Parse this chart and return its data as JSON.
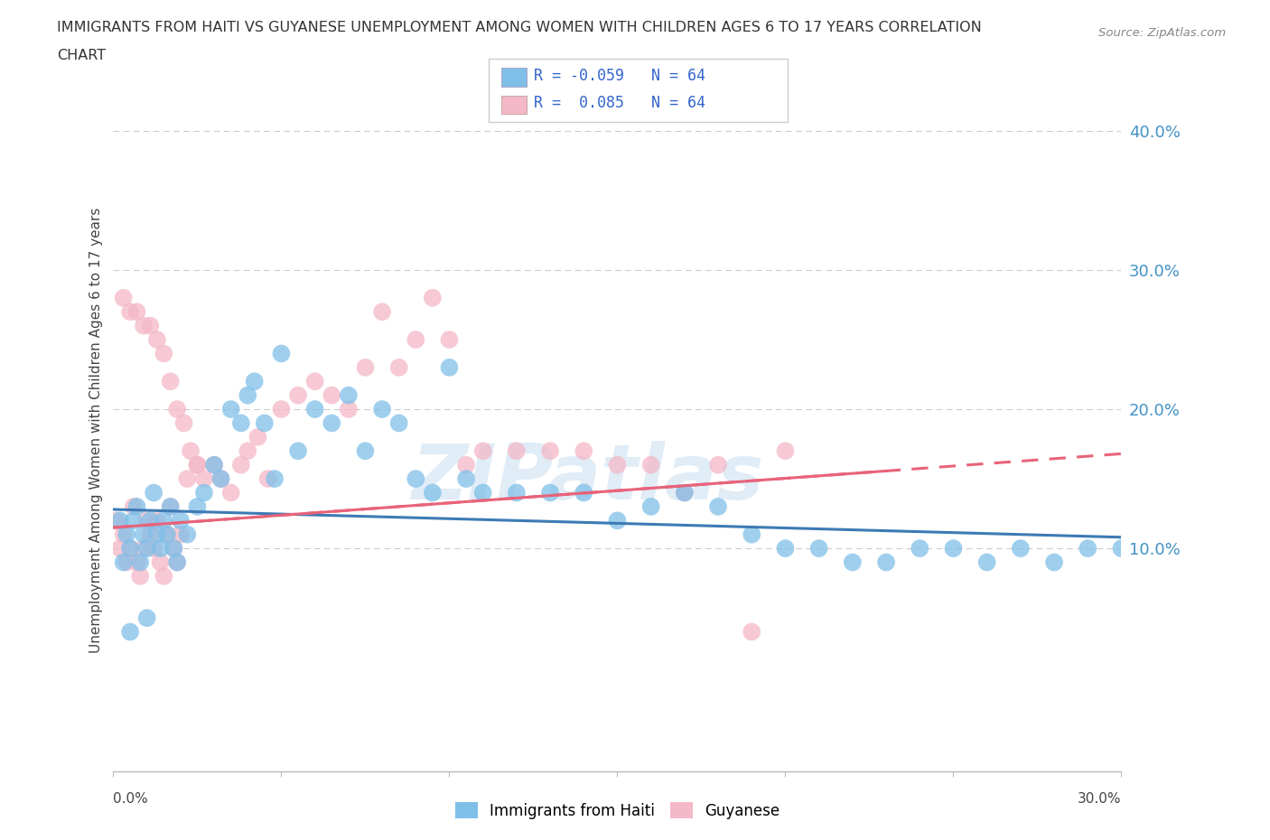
{
  "title_line1": "IMMIGRANTS FROM HAITI VS GUYANESE UNEMPLOYMENT AMONG WOMEN WITH CHILDREN AGES 6 TO 17 YEARS CORRELATION",
  "title_line2": "CHART",
  "source": "Source: ZipAtlas.com",
  "ylabel": "Unemployment Among Women with Children Ages 6 to 17 years",
  "ylabel_right_ticks": [
    "40.0%",
    "30.0%",
    "20.0%",
    "10.0%"
  ],
  "ylabel_right_vals": [
    0.4,
    0.3,
    0.2,
    0.1
  ],
  "xmin": 0.0,
  "xmax": 0.3,
  "ymin": -0.06,
  "ymax": 0.43,
  "haiti_color": "#7fbfe8",
  "guyanese_color": "#f4b8c8",
  "haiti_line_color": "#3d7ab5",
  "guyanese_line_color": "#e8637a",
  "haiti_R": -0.059,
  "haiti_N": 64,
  "guyanese_R": 0.085,
  "guyanese_N": 64,
  "haiti_line_x0": 0.0,
  "haiti_line_y0": 0.128,
  "haiti_line_x1": 0.3,
  "haiti_line_y1": 0.108,
  "guyanese_line_x0": 0.0,
  "guyanese_line_y0": 0.115,
  "guyanese_line_x1": 0.3,
  "guyanese_line_y1": 0.168,
  "grid_color": "#cccccc",
  "background_color": "#ffffff",
  "watermark": "ZIPatlas",
  "haiti_scatter_x": [
    0.002,
    0.003,
    0.004,
    0.005,
    0.006,
    0.007,
    0.008,
    0.009,
    0.01,
    0.011,
    0.012,
    0.013,
    0.014,
    0.015,
    0.016,
    0.017,
    0.018,
    0.019,
    0.02,
    0.022,
    0.025,
    0.027,
    0.03,
    0.032,
    0.035,
    0.038,
    0.04,
    0.042,
    0.045,
    0.048,
    0.05,
    0.055,
    0.06,
    0.065,
    0.07,
    0.075,
    0.08,
    0.085,
    0.09,
    0.095,
    0.1,
    0.105,
    0.11,
    0.12,
    0.13,
    0.14,
    0.15,
    0.16,
    0.17,
    0.18,
    0.19,
    0.2,
    0.21,
    0.22,
    0.23,
    0.24,
    0.25,
    0.26,
    0.27,
    0.28,
    0.29,
    0.3,
    0.005,
    0.01
  ],
  "haiti_scatter_y": [
    0.12,
    0.09,
    0.11,
    0.1,
    0.12,
    0.13,
    0.09,
    0.11,
    0.1,
    0.12,
    0.14,
    0.11,
    0.1,
    0.12,
    0.11,
    0.13,
    0.1,
    0.09,
    0.12,
    0.11,
    0.13,
    0.14,
    0.16,
    0.15,
    0.2,
    0.19,
    0.21,
    0.22,
    0.19,
    0.15,
    0.24,
    0.17,
    0.2,
    0.19,
    0.21,
    0.17,
    0.2,
    0.19,
    0.15,
    0.14,
    0.23,
    0.15,
    0.14,
    0.14,
    0.14,
    0.14,
    0.12,
    0.13,
    0.14,
    0.13,
    0.11,
    0.1,
    0.1,
    0.09,
    0.09,
    0.1,
    0.1,
    0.09,
    0.1,
    0.09,
    0.1,
    0.1,
    0.04,
    0.05
  ],
  "guyanese_scatter_x": [
    0.001,
    0.002,
    0.003,
    0.004,
    0.005,
    0.006,
    0.007,
    0.008,
    0.009,
    0.01,
    0.011,
    0.012,
    0.013,
    0.014,
    0.015,
    0.016,
    0.017,
    0.018,
    0.019,
    0.02,
    0.022,
    0.025,
    0.027,
    0.03,
    0.032,
    0.035,
    0.038,
    0.04,
    0.043,
    0.046,
    0.05,
    0.055,
    0.06,
    0.065,
    0.07,
    0.075,
    0.08,
    0.085,
    0.09,
    0.095,
    0.1,
    0.105,
    0.11,
    0.12,
    0.13,
    0.14,
    0.15,
    0.16,
    0.17,
    0.18,
    0.19,
    0.2,
    0.003,
    0.005,
    0.007,
    0.009,
    0.011,
    0.013,
    0.015,
    0.017,
    0.019,
    0.021,
    0.023,
    0.025
  ],
  "guyanese_scatter_y": [
    0.12,
    0.1,
    0.11,
    0.09,
    0.1,
    0.13,
    0.09,
    0.08,
    0.1,
    0.12,
    0.11,
    0.1,
    0.12,
    0.09,
    0.08,
    0.11,
    0.13,
    0.1,
    0.09,
    0.11,
    0.15,
    0.16,
    0.15,
    0.16,
    0.15,
    0.14,
    0.16,
    0.17,
    0.18,
    0.15,
    0.2,
    0.21,
    0.22,
    0.21,
    0.2,
    0.23,
    0.27,
    0.23,
    0.25,
    0.28,
    0.25,
    0.16,
    0.17,
    0.17,
    0.17,
    0.17,
    0.16,
    0.16,
    0.14,
    0.16,
    0.04,
    0.17,
    0.28,
    0.27,
    0.27,
    0.26,
    0.26,
    0.25,
    0.24,
    0.22,
    0.2,
    0.19,
    0.17,
    0.16
  ]
}
